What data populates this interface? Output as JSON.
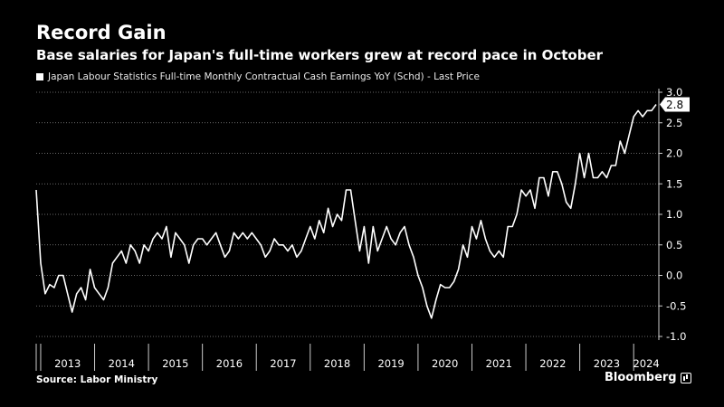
{
  "title": "Record Gain",
  "subtitle": "Base salaries for Japan's full-time workers grew at record pace in October",
  "source": "Source: Labor Ministry",
  "brand": "Bloomberg",
  "brand_icon": "bloomberg-chart-icon",
  "colors": {
    "background": "#000000",
    "line": "#ffffff",
    "grid": "#8a8a8a",
    "axis": "#cccccc"
  },
  "chart_data": {
    "type": "line",
    "title": "",
    "xlabel": "",
    "ylabel": "",
    "y_axis_position": "right",
    "ylim": [
      -1.0,
      3.0
    ],
    "y_ticks": [
      3.0,
      2.5,
      2.0,
      1.5,
      1.0,
      0.5,
      0.0,
      -0.5,
      -1.0
    ],
    "y_tick_labels": [
      "3.0",
      "2.5",
      "2.0",
      "1.5",
      "1.0",
      "0.5",
      "0.0",
      "-0.5",
      "-1.0"
    ],
    "x_tick_labels": [
      "2013",
      "2014",
      "2015",
      "2016",
      "2017",
      "2018",
      "2019",
      "2020",
      "2021",
      "2022",
      "2023",
      "2024"
    ],
    "grid": "horizontal dotted",
    "last_value_label": "2.8",
    "series": [
      {
        "name": "Japan Labour Statistics Full-time Monthly Contractual Cash Earnings YoY (Schd) - Last Price",
        "x_start": "2012-12",
        "frequency": "monthly",
        "values": [
          1.4,
          0.2,
          -0.3,
          -0.15,
          -0.2,
          0.0,
          0.0,
          -0.3,
          -0.6,
          -0.3,
          -0.2,
          -0.4,
          0.1,
          -0.2,
          -0.3,
          -0.4,
          -0.2,
          0.2,
          0.3,
          0.4,
          0.2,
          0.5,
          0.4,
          0.2,
          0.5,
          0.4,
          0.6,
          0.7,
          0.6,
          0.8,
          0.3,
          0.7,
          0.6,
          0.5,
          0.2,
          0.5,
          0.6,
          0.6,
          0.5,
          0.6,
          0.7,
          0.5,
          0.3,
          0.4,
          0.7,
          0.6,
          0.7,
          0.6,
          0.7,
          0.6,
          0.5,
          0.3,
          0.4,
          0.6,
          0.5,
          0.5,
          0.4,
          0.5,
          0.3,
          0.4,
          0.6,
          0.8,
          0.6,
          0.9,
          0.7,
          1.1,
          0.8,
          1.0,
          0.9,
          1.4,
          1.4,
          0.9,
          0.4,
          0.8,
          0.2,
          0.8,
          0.4,
          0.6,
          0.8,
          0.6,
          0.5,
          0.7,
          0.8,
          0.5,
          0.3,
          0.0,
          -0.2,
          -0.5,
          -0.7,
          -0.4,
          -0.15,
          -0.2,
          -0.2,
          -0.1,
          0.1,
          0.5,
          0.3,
          0.8,
          0.6,
          0.9,
          0.6,
          0.4,
          0.3,
          0.4,
          0.3,
          0.8,
          0.8,
          1.0,
          1.4,
          1.3,
          1.4,
          1.1,
          1.6,
          1.6,
          1.3,
          1.7,
          1.7,
          1.5,
          1.2,
          1.1,
          1.5,
          2.0,
          1.6,
          2.0,
          1.6,
          1.6,
          1.7,
          1.6,
          1.8,
          1.8,
          2.2,
          2.0,
          2.3,
          2.6,
          2.7,
          2.6,
          2.7,
          2.7,
          2.8
        ]
      }
    ]
  }
}
